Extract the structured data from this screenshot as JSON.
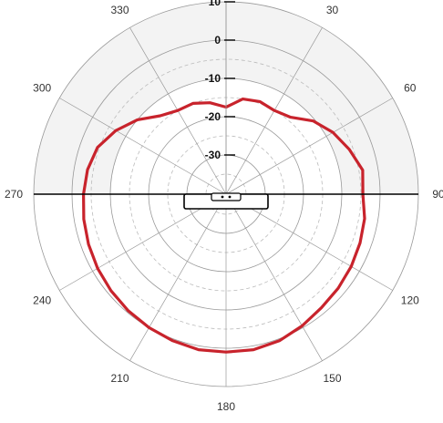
{
  "chart_data": {
    "type": "polar-line",
    "title": "",
    "angle_unit": "degrees",
    "angle_direction": "clockwise",
    "zero_angle": "top",
    "angle_tick_labels": [
      "30",
      "60",
      "90",
      "120",
      "150",
      "180",
      "210",
      "240",
      "270",
      "300",
      "330"
    ],
    "angle_ticks": [
      30,
      60,
      90,
      120,
      150,
      180,
      210,
      240,
      270,
      300,
      330
    ],
    "radial_tick_labels": [
      "10",
      "0",
      "-10",
      "-20",
      "-30"
    ],
    "radial_ticks": [
      10,
      0,
      -10,
      -20,
      -30
    ],
    "radial_range": [
      -40,
      10
    ],
    "radial_minor_ticks": [
      -5,
      -15,
      -25,
      -35
    ],
    "grid": true,
    "shaded_sector": {
      "from_angle": 270,
      "to_angle": 90,
      "through": "0"
    },
    "series": [
      {
        "color": "#c8232c",
        "points": [
          [
            0,
            -17.5
          ],
          [
            10,
            -15
          ],
          [
            20,
            -14.5
          ],
          [
            30,
            -15
          ],
          [
            40,
            -14
          ],
          [
            50,
            -10.5
          ],
          [
            60,
            -8
          ],
          [
            70,
            -6
          ],
          [
            80,
            -4
          ],
          [
            90,
            -4.5
          ],
          [
            100,
            -3.5
          ],
          [
            110,
            -3
          ],
          [
            120,
            -2.5
          ],
          [
            130,
            -2
          ],
          [
            140,
            -1.5
          ],
          [
            150,
            -0.5
          ],
          [
            160,
            0.5
          ],
          [
            170,
            1
          ],
          [
            180,
            1
          ],
          [
            190,
            1
          ],
          [
            200,
            0.5
          ],
          [
            210,
            0
          ],
          [
            220,
            -0.5
          ],
          [
            230,
            -1
          ],
          [
            240,
            -1.5
          ],
          [
            250,
            -2
          ],
          [
            260,
            -2.5
          ],
          [
            270,
            -3
          ],
          [
            280,
            -3.5
          ],
          [
            290,
            -4.5
          ],
          [
            300,
            -7
          ],
          [
            310,
            -10
          ],
          [
            320,
            -13.5
          ],
          [
            330,
            -15
          ],
          [
            340,
            -15
          ],
          [
            350,
            -16
          ],
          [
            360,
            -17.5
          ]
        ]
      }
    ]
  },
  "colors": {
    "curve": "#c8232c",
    "axis": "#000000",
    "grid": "#999999",
    "shade": "#f3f3f3"
  },
  "icons": {
    "device": "device-outline-icon"
  }
}
